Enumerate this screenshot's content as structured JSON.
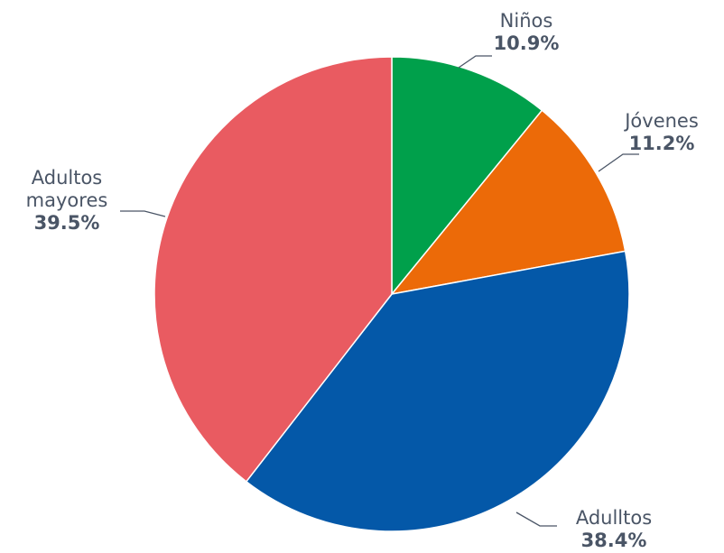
{
  "chart_data": {
    "type": "pie",
    "title": "",
    "slices": [
      {
        "label_lines": [
          "Niños"
        ],
        "value": 10.9,
        "value_label": "10.9%",
        "color": "#00a04b"
      },
      {
        "label_lines": [
          "Jóvenes"
        ],
        "value": 11.2,
        "value_label": "11.2%",
        "color": "#ec6a08"
      },
      {
        "label_lines": [
          "Adulltos"
        ],
        "value": 38.4,
        "value_label": "38.4%",
        "color": "#0458a8"
      },
      {
        "label_lines": [
          "Adultos",
          "mayores"
        ],
        "value": 39.5,
        "value_label": "39.5%",
        "color": "#e95b61"
      }
    ],
    "start": "12 o'clock",
    "direction": "clockwise"
  }
}
